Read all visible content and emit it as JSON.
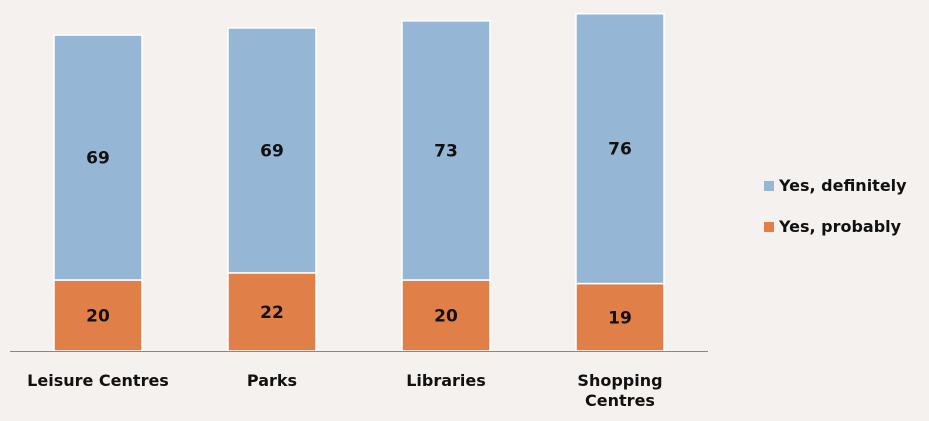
{
  "chart_data": {
    "type": "stacked_bar",
    "categories": [
      "Leisure Centres",
      "Parks",
      "Libraries",
      "Shopping Centres"
    ],
    "series": [
      {
        "name": "Yes, probably",
        "color": "#e07f47",
        "values": [
          20,
          22,
          20,
          19
        ]
      },
      {
        "name": "Yes, definitely",
        "color": "#95b6d4",
        "values": [
          69,
          69,
          73,
          76
        ]
      }
    ],
    "legend": "right"
  }
}
